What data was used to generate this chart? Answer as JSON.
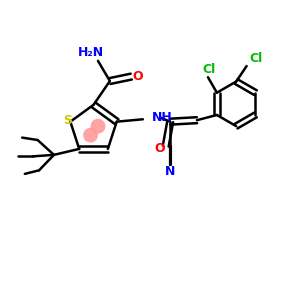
{
  "background": "#ffffff",
  "atom_colors": {
    "N": "#0000ff",
    "O": "#ff0000",
    "S": "#cccc00",
    "Cl": "#00bb00"
  },
  "aromatic_color": "#ff9999",
  "bond_color": "#000000",
  "bond_width": 1.8
}
